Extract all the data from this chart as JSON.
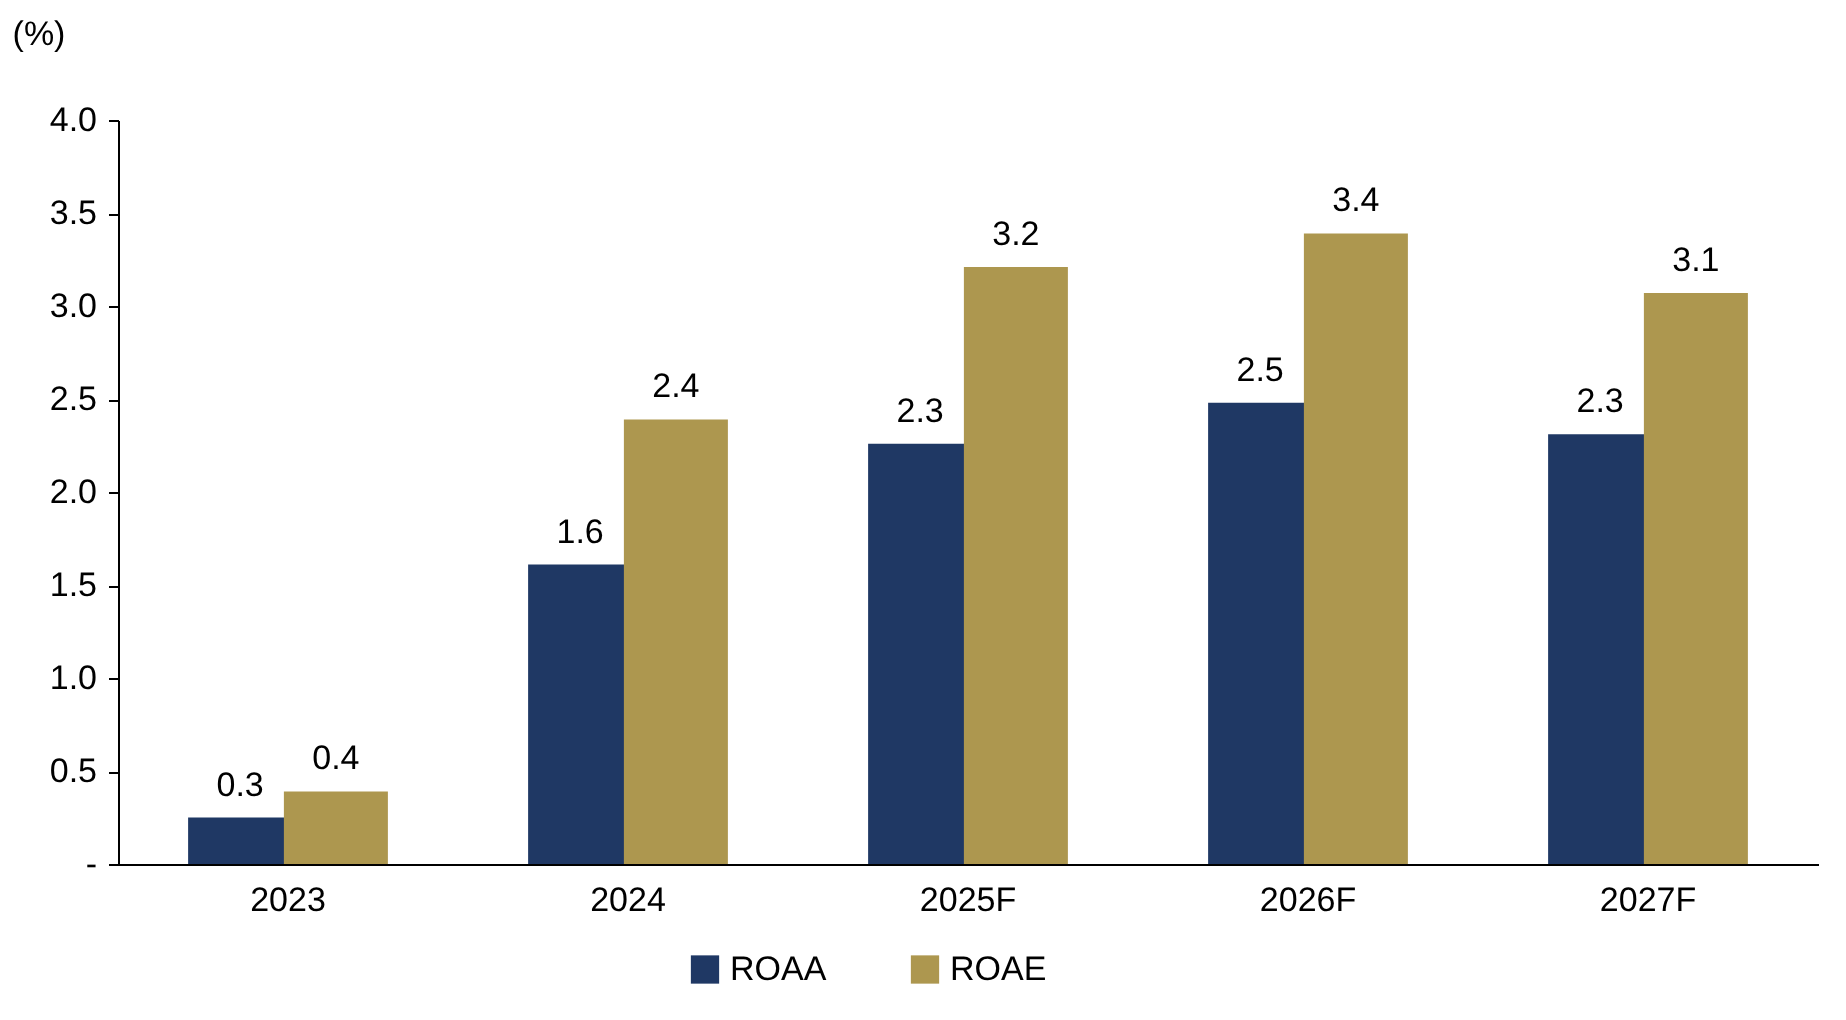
{
  "chart_data": {
    "type": "bar",
    "ylabel": "(%)",
    "categories": [
      "2023",
      "2024",
      "2025F",
      "2026F",
      "2027F"
    ],
    "series": [
      {
        "name": "ROAA",
        "color": "#1f3864",
        "values": [
          0.25,
          1.61,
          2.26,
          2.48,
          2.31
        ],
        "value_labels": [
          "0.3",
          "1.6",
          "2.3",
          "2.5",
          "2.3"
        ]
      },
      {
        "name": "ROAE",
        "color": "#ad974f",
        "values": [
          0.39,
          2.39,
          3.21,
          3.39,
          3.07
        ],
        "value_labels": [
          "0.4",
          "2.4",
          "3.2",
          "3.4",
          "3.1"
        ]
      }
    ],
    "ylim": [
      0,
      4.0
    ],
    "yticks": [
      {
        "value": 0,
        "label": "-"
      },
      {
        "value": 0.5,
        "label": "0.5"
      },
      {
        "value": 1.0,
        "label": "1.0"
      },
      {
        "value": 1.5,
        "label": "1.5"
      },
      {
        "value": 2.0,
        "label": "2.0"
      },
      {
        "value": 2.5,
        "label": "2.5"
      },
      {
        "value": 3.0,
        "label": "3.0"
      },
      {
        "value": 3.5,
        "label": "3.5"
      },
      {
        "value": 4.0,
        "label": "4.0"
      }
    ],
    "grid": false,
    "legend": "bottom"
  }
}
